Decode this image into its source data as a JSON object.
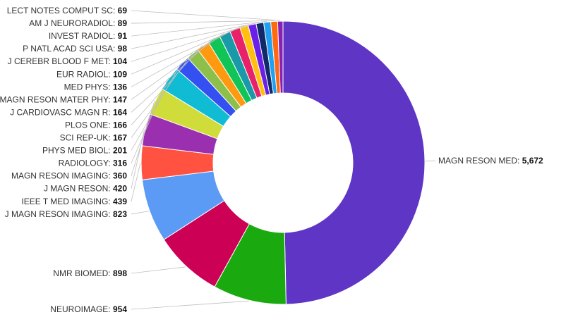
{
  "chart_data": {
    "type": "pie",
    "title": "",
    "legend": "none",
    "slices": [
      {
        "label": "MAGN RESON MED",
        "display": "5,672",
        "value": 5672,
        "color": "#5e35c4"
      },
      {
        "label": "NEUROIMAGE",
        "display": "954",
        "value": 954,
        "color": "#1aaa10"
      },
      {
        "label": "NMR BIOMED",
        "display": "898",
        "value": 898,
        "color": "#cc0055"
      },
      {
        "label": "J MAGN RESON IMAGING",
        "display": "823",
        "value": 823,
        "color": "#5c9bf5"
      },
      {
        "label": "IEEE T MED IMAGING",
        "display": "439",
        "value": 439,
        "color": "#ff5240"
      },
      {
        "label": "J MAGN RESON",
        "display": "420",
        "value": 420,
        "color": "#9a30b0"
      },
      {
        "label": "MAGN RESON IMAGING",
        "display": "360",
        "value": 360,
        "color": "#cfdc3a"
      },
      {
        "label": "RADIOLOGY",
        "display": "316",
        "value": 316,
        "color": "#10bcd4"
      },
      {
        "label": "PHYS MED BIOL",
        "display": "201",
        "value": 201,
        "color": "#3450f0"
      },
      {
        "label": "SCI REP-UK",
        "display": "167",
        "value": 167,
        "color": "#8cc04a"
      },
      {
        "label": "PLOS ONE",
        "display": "166",
        "value": 166,
        "color": "#ff9a10"
      },
      {
        "label": "J CARDIOVASC MAGN R",
        "display": "164",
        "value": 164,
        "color": "#10c458"
      },
      {
        "label": "MAGN RESON MATER PHY",
        "display": "147",
        "value": 147,
        "color": "#1a9aa8"
      },
      {
        "label": "MED PHYS",
        "display": "136",
        "value": 136,
        "color": "#e8226a"
      },
      {
        "label": "EUR RADIOL",
        "display": "109",
        "value": 109,
        "color": "#ffc010"
      },
      {
        "label": "J CEREBR BLOOD F MET",
        "display": "104",
        "value": 104,
        "color": "#6a20e8"
      },
      {
        "label": "P NATL ACAD SCI USA",
        "display": "98",
        "value": 98,
        "color": "#102a6a"
      },
      {
        "label": "INVEST RADIOL",
        "display": "91",
        "value": 91,
        "color": "#20a0f0"
      },
      {
        "label": "AM J NEURORADIOL",
        "display": "89",
        "value": 89,
        "color": "#ff6a10"
      },
      {
        "label": "LECT NOTES COMPUT SC",
        "display": "69",
        "value": 69,
        "color": "#8a20b0"
      }
    ]
  }
}
